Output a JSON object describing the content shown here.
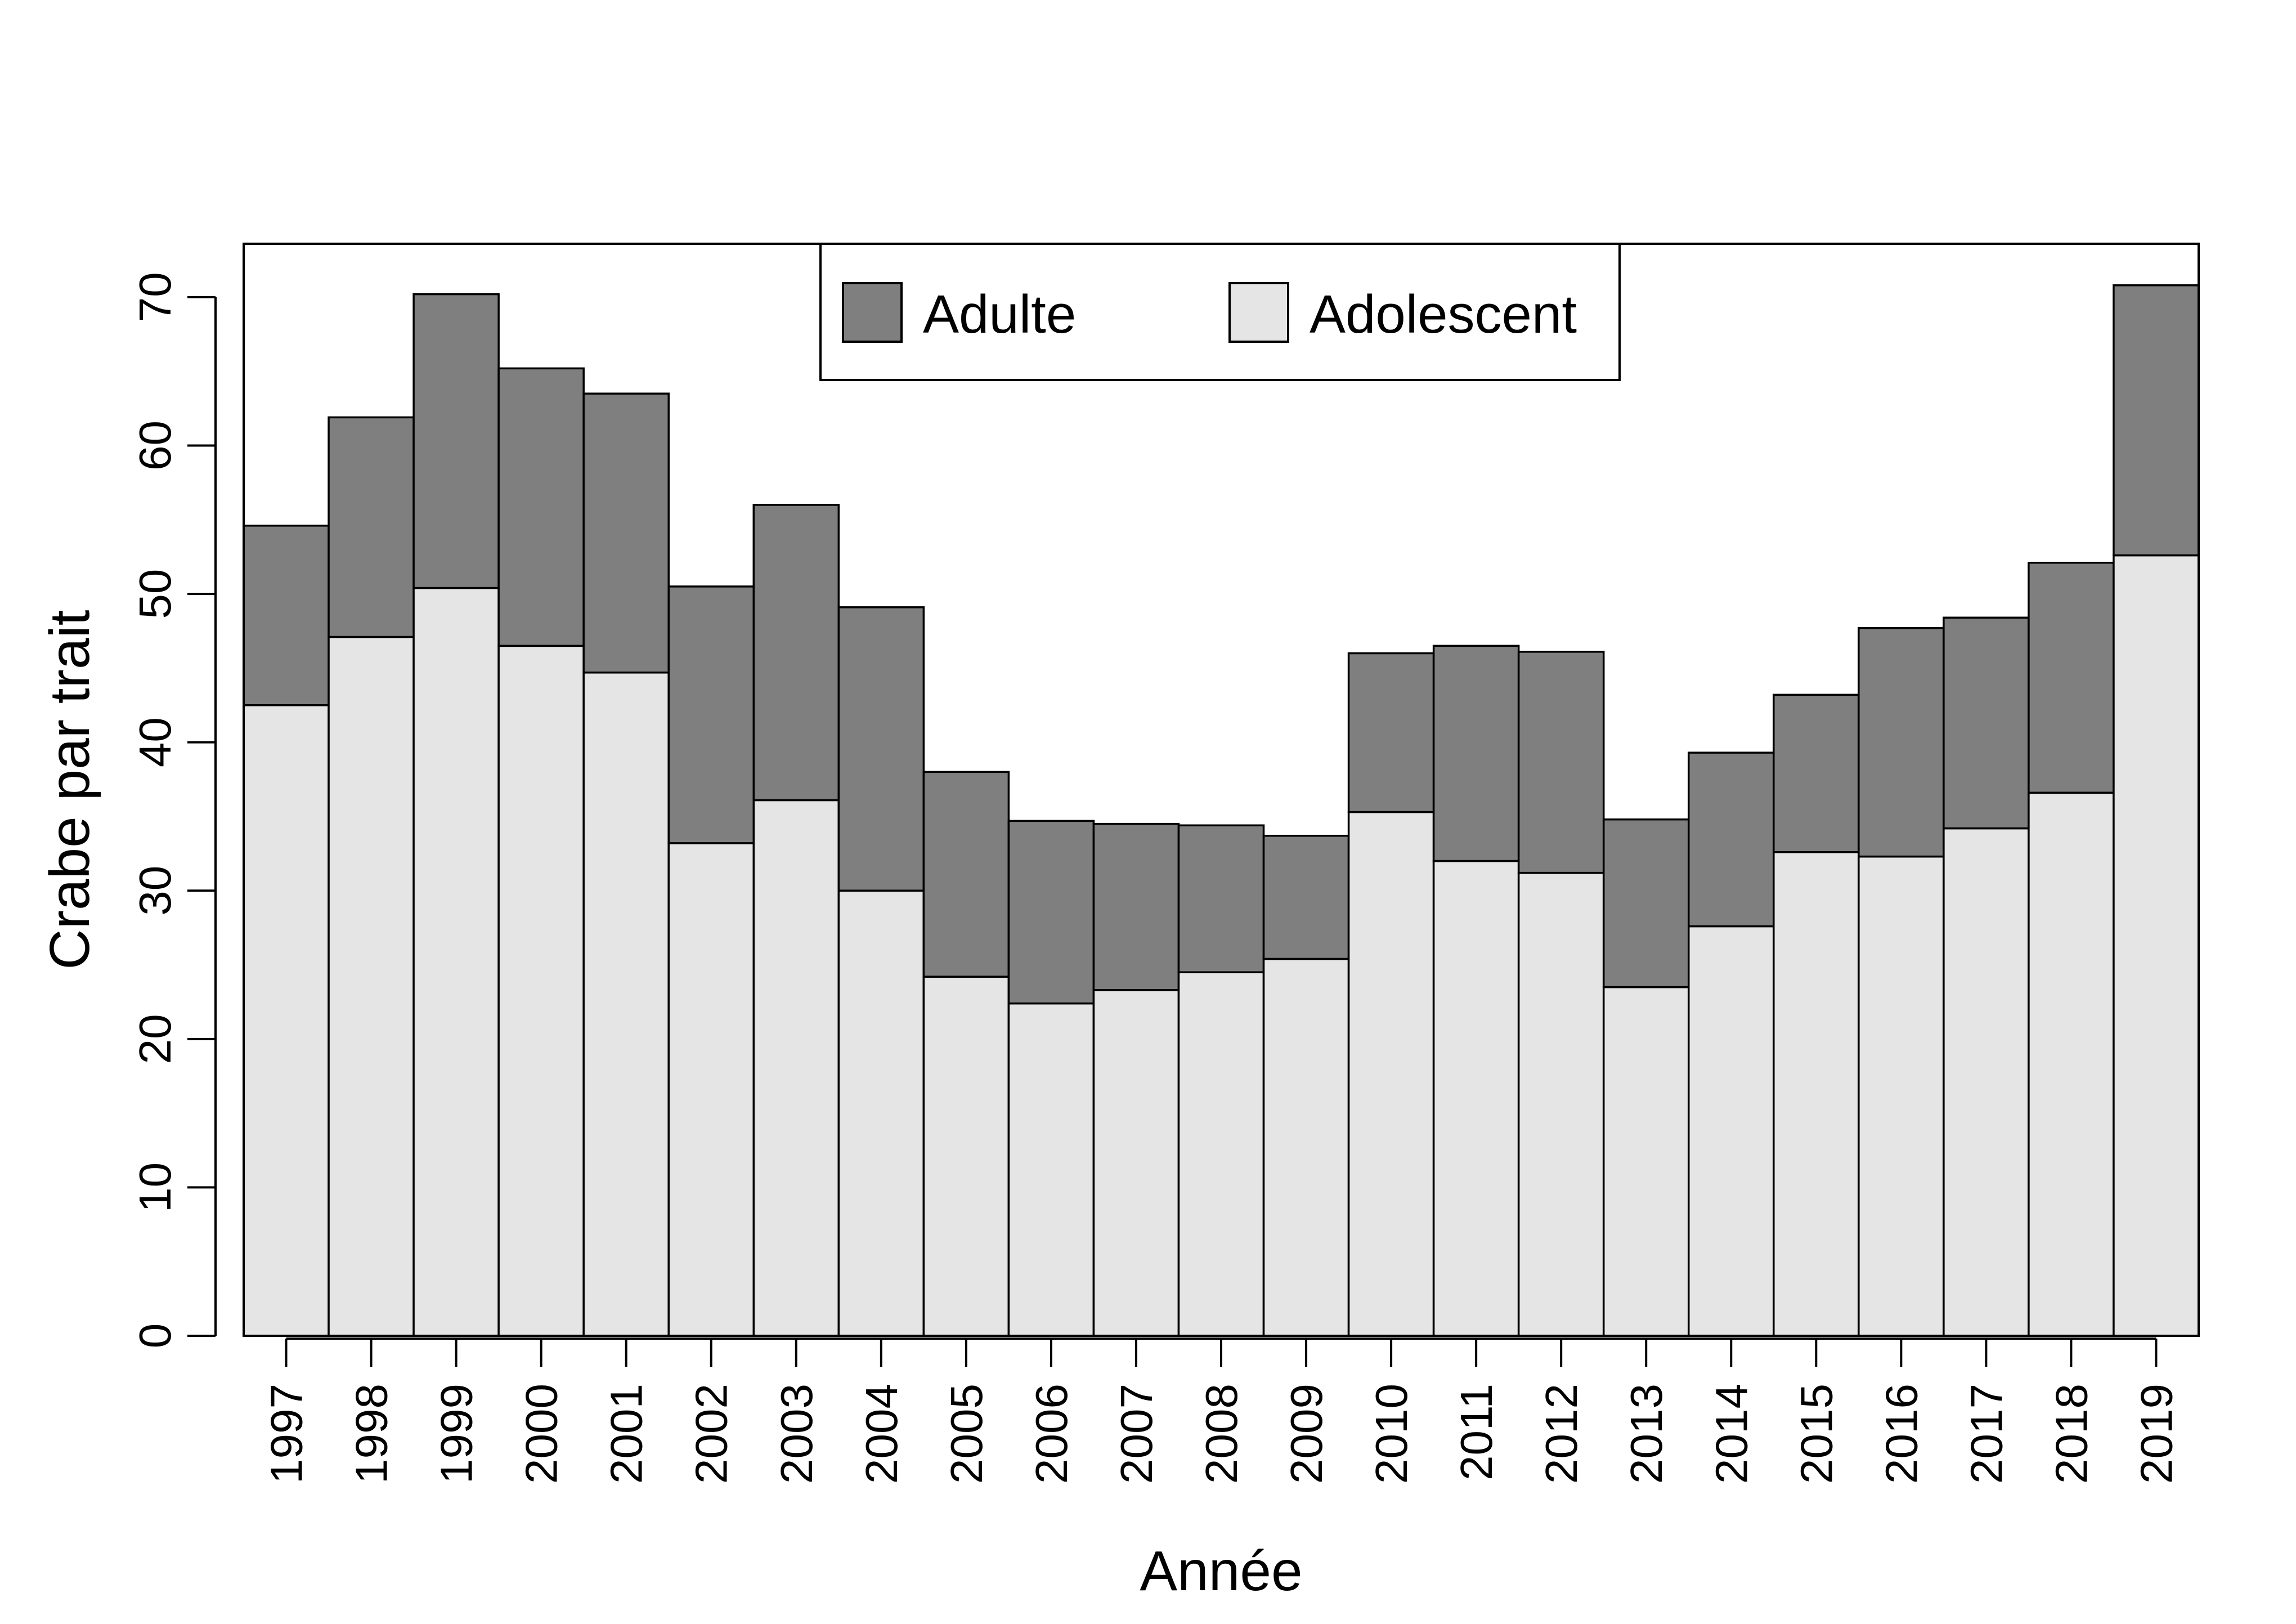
{
  "chart_data": {
    "type": "bar",
    "stacked": true,
    "categories": [
      "1997",
      "1998",
      "1999",
      "2000",
      "2001",
      "2002",
      "2003",
      "2004",
      "2005",
      "2006",
      "2007",
      "2008",
      "2009",
      "2010",
      "2011",
      "2012",
      "2013",
      "2014",
      "2015",
      "2016",
      "2017",
      "2018",
      "2019"
    ],
    "series": [
      {
        "name": "Adolescent",
        "color": "#e5e5e5",
        "values": [
          42.5,
          47.1,
          50.4,
          46.5,
          44.7,
          33.2,
          36.1,
          30.0,
          24.2,
          22.4,
          23.3,
          24.5,
          25.4,
          35.3,
          32.0,
          31.2,
          23.5,
          27.6,
          32.6,
          32.3,
          34.2,
          36.6,
          52.6
        ]
      },
      {
        "name": "Adulte",
        "color": "#7f7f7f",
        "values": [
          12.1,
          14.8,
          19.8,
          18.7,
          18.8,
          17.3,
          19.9,
          19.1,
          13.8,
          12.3,
          11.2,
          9.9,
          8.3,
          10.7,
          14.5,
          14.9,
          11.3,
          11.7,
          10.6,
          15.4,
          14.2,
          15.5,
          18.2
        ]
      }
    ],
    "xlabel": "Année",
    "ylabel": "Crabe par trait",
    "ylim": [
      0,
      73.6
    ],
    "yticks": [
      0,
      10,
      20,
      30,
      40,
      50,
      60,
      70
    ],
    "legend": {
      "position": "top-center",
      "entries": [
        {
          "label": "Adulte",
          "color": "#7f7f7f"
        },
        {
          "label": "Adolescent",
          "color": "#e5e5e5"
        }
      ]
    },
    "grid": false
  }
}
